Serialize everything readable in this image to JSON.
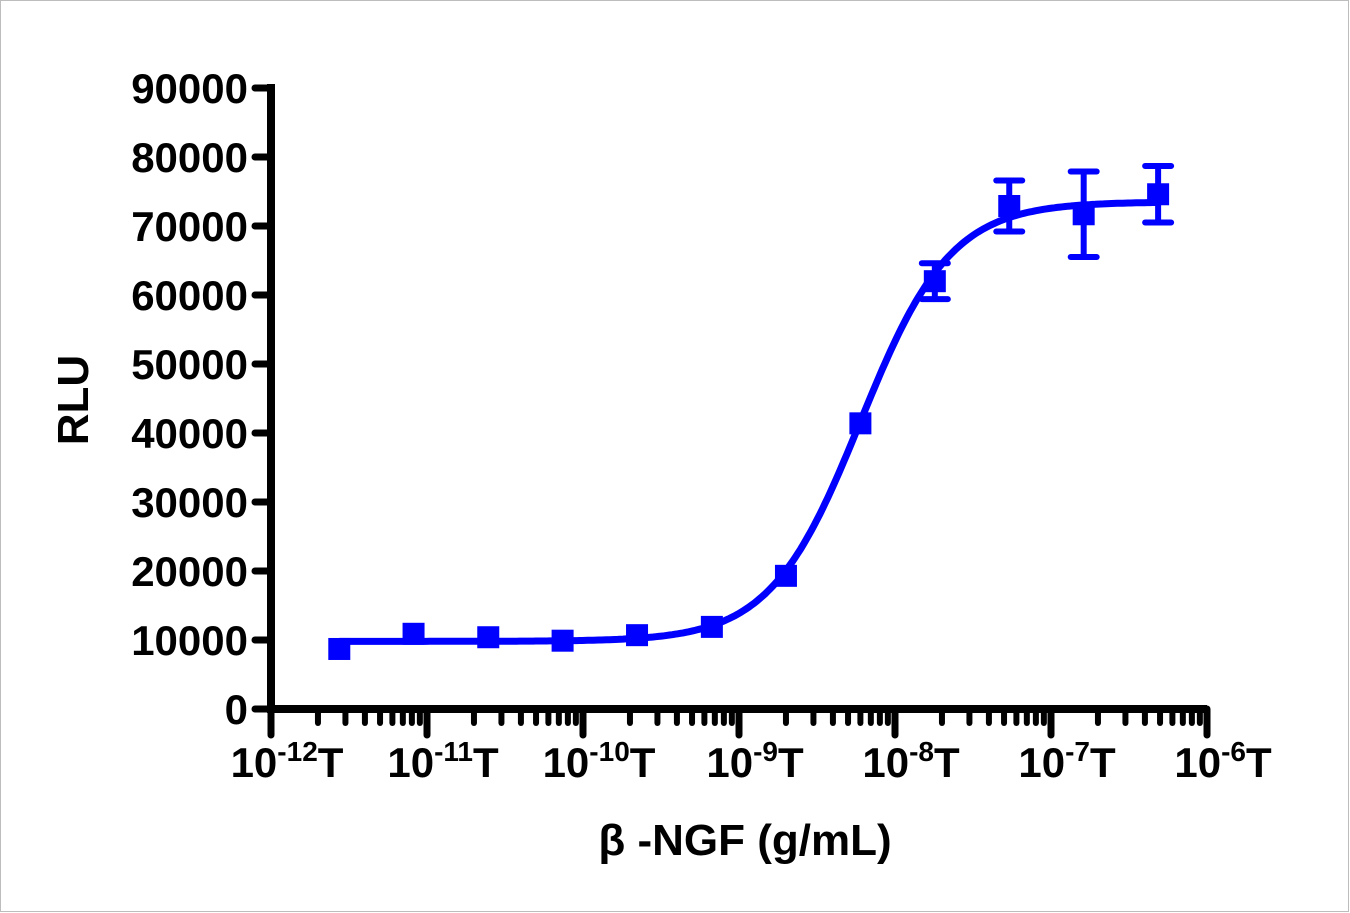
{
  "chart_data": {
    "type": "scatter",
    "title": "",
    "xlabel": "β -NGF (g/mL)",
    "ylabel": "RLU",
    "x_scale": "log",
    "xlim": [
      1e-12,
      1e-06
    ],
    "ylim": [
      0,
      90000
    ],
    "x_tick_labels": [
      {
        "base": "10",
        "exp": "-12",
        "unit": "T"
      },
      {
        "base": "10",
        "exp": "-11",
        "unit": "T"
      },
      {
        "base": "10",
        "exp": "-10",
        "unit": "T"
      },
      {
        "base": "10",
        "exp": "-9",
        "unit": "T"
      },
      {
        "base": "10",
        "exp": "-8",
        "unit": "T"
      },
      {
        "base": "10",
        "exp": "-7",
        "unit": "T"
      },
      {
        "base": "10",
        "exp": "-6",
        "unit": "T"
      }
    ],
    "y_ticks": [
      "0",
      "10000",
      "20000",
      "30000",
      "40000",
      "50000",
      "60000",
      "70000",
      "80000",
      "90000"
    ],
    "grid": false,
    "color": "#0000ff",
    "series": [
      {
        "x": [
          2.74e-12,
          8.2e-12,
          2.47e-11,
          7.4e-11,
          2.22e-10,
          6.7e-10,
          2e-09,
          6e-09,
          1.8e-08,
          5.4e-08,
          1.62e-07,
          4.86e-07
        ],
        "y": [
          8700,
          10900,
          10400,
          9900,
          10700,
          11900,
          19300,
          41400,
          62000,
          72900,
          71700,
          74600
        ],
        "error": [
          0,
          0,
          0,
          0,
          0,
          0,
          0,
          0,
          2600,
          3700,
          6200,
          4100
        ]
      }
    ],
    "fit": {
      "model": "4PL",
      "bottom": 9800,
      "top": 73500,
      "ec50": 6e-09,
      "hill": 1.5
    }
  }
}
